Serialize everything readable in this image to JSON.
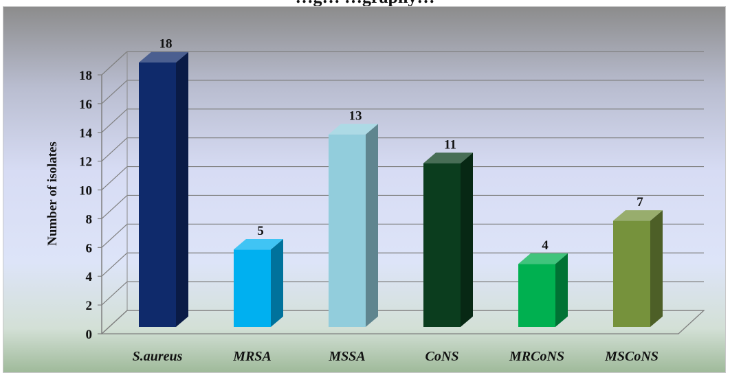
{
  "title": "…g… …graphy…",
  "chart_data": {
    "type": "bar",
    "categories": [
      "S.aureus",
      "MRSA",
      "MSSA",
      "CoNS",
      "MRCoNS",
      "MSCoNS"
    ],
    "values": [
      18,
      5,
      13,
      11,
      4,
      7
    ],
    "colors": [
      "#0f2a6b",
      "#00b0f0",
      "#92cddc",
      "#0b3d1e",
      "#00b050",
      "#76923c"
    ],
    "title": "",
    "xlabel": "",
    "ylabel": "Number of isolates",
    "ylim": [
      0,
      18
    ],
    "yticks": [
      0,
      2,
      4,
      6,
      8,
      10,
      12,
      14,
      16,
      18
    ],
    "grid": true,
    "legend": "none",
    "style": "3d-column"
  }
}
